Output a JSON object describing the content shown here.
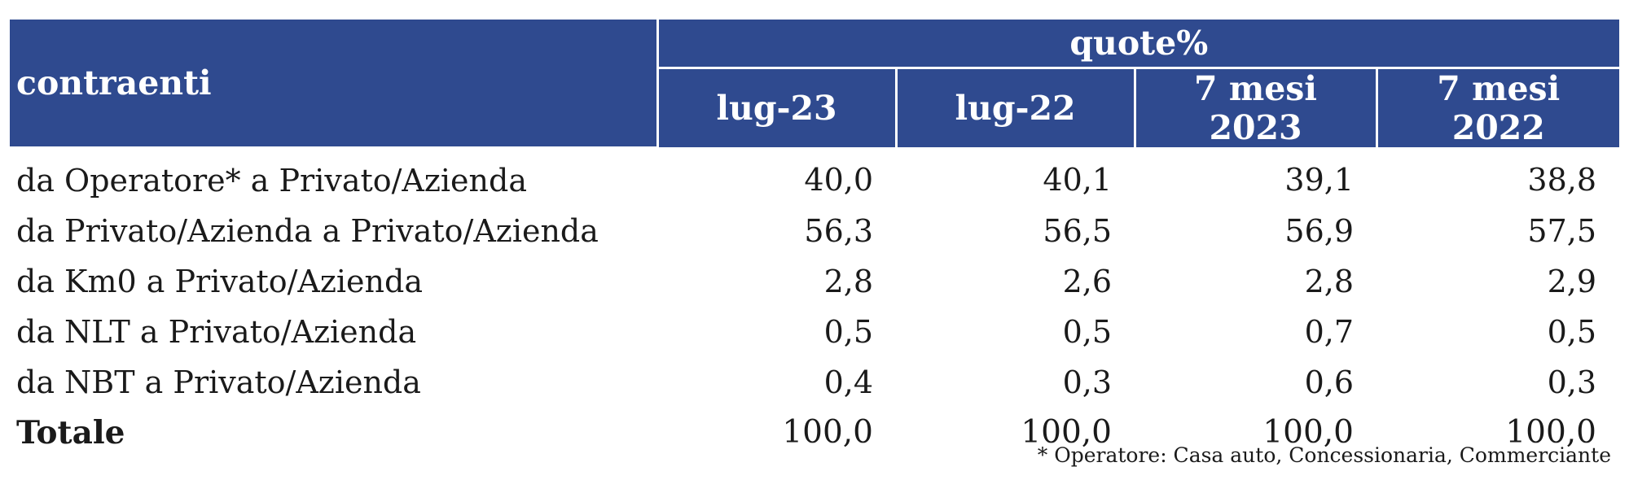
{
  "chart_data": {
    "type": "table",
    "header": {
      "row_label": "contraenti",
      "group_label": "quote%",
      "columns": [
        "lug-23",
        "lug-22",
        "7 mesi 2023",
        "7 mesi 2022"
      ]
    },
    "rows": [
      {
        "label": "da Operatore* a Privato/Azienda",
        "values": [
          "40,0",
          "40,1",
          "39,1",
          "38,8"
        ]
      },
      {
        "label": "da Privato/Azienda a Privato/Azienda",
        "values": [
          "56,3",
          "56,5",
          "56,9",
          "57,5"
        ]
      },
      {
        "label": "da Km0 a Privato/Azienda",
        "values": [
          "2,8",
          "2,6",
          "2,8",
          "2,9"
        ]
      },
      {
        "label": "da NLT a Privato/Azienda",
        "values": [
          "0,5",
          "0,5",
          "0,7",
          "0,5"
        ]
      },
      {
        "label": "da NBT a Privato/Azienda",
        "values": [
          "0,4",
          "0,3",
          "0,6",
          "0,3"
        ]
      },
      {
        "label": "Totale",
        "values": [
          "100,0",
          "100,0",
          "100,0",
          "100,0"
        ]
      }
    ],
    "footnote": "* Operatore: Casa auto, Concessionaria, Commerciante",
    "colors": {
      "header_bg": "#2f4a8f",
      "header_text": "#ffffff"
    }
  }
}
